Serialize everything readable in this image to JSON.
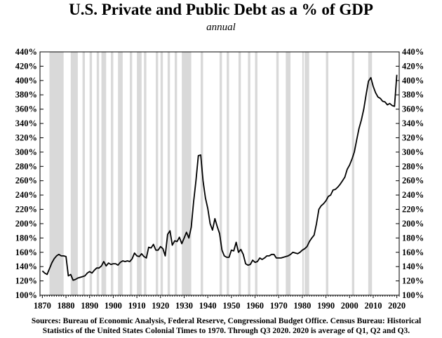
{
  "chart_data": {
    "type": "line",
    "title": "U.S. Private and Public Debt as a % of GDP",
    "subtitle": "annual",
    "xlabel": "",
    "ylabel": "",
    "xlim": [
      1869,
      2021
    ],
    "ylim": [
      100,
      440
    ],
    "x_ticks": [
      1870,
      1880,
      1890,
      1900,
      1910,
      1920,
      1930,
      1940,
      1950,
      1960,
      1970,
      1980,
      1990,
      2000,
      2010,
      2020
    ],
    "y_ticks": [
      100,
      120,
      140,
      160,
      180,
      200,
      220,
      240,
      260,
      280,
      300,
      320,
      340,
      360,
      380,
      400,
      420,
      440
    ],
    "y_tick_suffix": "%",
    "grid": false,
    "recession_shading_color": "#d9d9d9",
    "line_color": "#000000",
    "recessions": [
      [
        1873,
        1879
      ],
      [
        1882,
        1885
      ],
      [
        1887,
        1888
      ],
      [
        1890,
        1891
      ],
      [
        1893,
        1894
      ],
      [
        1895,
        1897
      ],
      [
        1899,
        1900
      ],
      [
        1902,
        1904
      ],
      [
        1907,
        1908
      ],
      [
        1910,
        1912
      ],
      [
        1913,
        1914
      ],
      [
        1918,
        1919
      ],
      [
        1920,
        1921
      ],
      [
        1923,
        1924
      ],
      [
        1926,
        1927
      ],
      [
        1929,
        1933
      ],
      [
        1937,
        1938
      ],
      [
        1945,
        1946
      ],
      [
        1948,
        1949
      ],
      [
        1953,
        1954
      ],
      [
        1957,
        1958
      ],
      [
        1960,
        1961
      ],
      [
        1969,
        1970
      ],
      [
        1973,
        1975
      ],
      [
        1980,
        1980.6
      ],
      [
        1981,
        1982.9
      ],
      [
        1990,
        1991
      ],
      [
        2001,
        2002
      ],
      [
        2007.9,
        2009.5
      ]
    ],
    "x": [
      1870,
      1871,
      1872,
      1873,
      1874,
      1875,
      1876,
      1877,
      1878,
      1879,
      1880,
      1881,
      1882,
      1883,
      1884,
      1885,
      1886,
      1887,
      1888,
      1889,
      1890,
      1891,
      1892,
      1893,
      1894,
      1895,
      1896,
      1897,
      1898,
      1899,
      1900,
      1901,
      1902,
      1903,
      1904,
      1905,
      1906,
      1907,
      1908,
      1909,
      1910,
      1911,
      1912,
      1913,
      1914,
      1915,
      1916,
      1917,
      1918,
      1919,
      1920,
      1921,
      1922,
      1923,
      1924,
      1925,
      1926,
      1927,
      1928,
      1929,
      1930,
      1931,
      1932,
      1933,
      1934,
      1935,
      1936,
      1937,
      1938,
      1939,
      1940,
      1941,
      1942,
      1943,
      1944,
      1945,
      1946,
      1947,
      1948,
      1949,
      1950,
      1951,
      1952,
      1953,
      1954,
      1955,
      1956,
      1957,
      1958,
      1959,
      1960,
      1961,
      1962,
      1963,
      1964,
      1965,
      1966,
      1967,
      1968,
      1969,
      1970,
      1971,
      1972,
      1973,
      1974,
      1975,
      1976,
      1977,
      1978,
      1979,
      1980,
      1981,
      1982,
      1983,
      1984,
      1985,
      1986,
      1987,
      1988,
      1989,
      1990,
      1991,
      1992,
      1993,
      1994,
      1995,
      1996,
      1997,
      1998,
      1999,
      2000,
      2001,
      2002,
      2003,
      2004,
      2005,
      2006,
      2007,
      2008,
      2009,
      2010,
      2011,
      2012,
      2013,
      2014,
      2015,
      2016,
      2017,
      2018,
      2019,
      2020
    ],
    "series": [
      {
        "values": [
          134,
          131,
          129,
          137,
          145,
          151,
          155,
          157,
          155,
          155,
          154,
          127,
          129,
          121,
          122,
          124,
          125,
          126,
          127,
          131,
          133,
          131,
          135,
          138,
          138,
          141,
          147,
          141,
          145,
          143,
          144,
          144,
          142,
          146,
          148,
          147,
          148,
          147,
          151,
          159,
          155,
          154,
          158,
          154,
          152,
          167,
          166,
          171,
          163,
          163,
          168,
          165,
          155,
          185,
          190,
          170,
          176,
          175,
          181,
          172,
          180,
          188,
          180,
          195,
          230,
          260,
          295,
          296,
          260,
          236,
          221,
          200,
          191,
          207,
          196,
          186,
          163,
          155,
          153,
          153,
          163,
          162,
          174,
          160,
          164,
          157,
          144,
          142,
          143,
          149,
          146,
          147,
          152,
          150,
          152,
          155,
          155,
          157,
          157,
          152,
          152,
          152,
          153,
          154,
          155,
          157,
          160,
          159,
          158,
          160,
          163,
          165,
          168,
          175,
          180,
          184,
          200,
          220,
          225,
          228,
          232,
          238,
          240,
          247,
          248,
          251,
          255,
          260,
          265,
          276,
          282,
          290,
          300,
          317,
          333,
          345,
          360,
          380,
          399,
          404,
          392,
          383,
          377,
          375,
          371,
          370,
          366,
          368,
          365,
          364,
          408
        ]
      }
    ]
  },
  "sources": [
    "Sources: Bureau of Economic Analysis, Federal Reserve, Congressional Budget Office. Census Bureau: Historical",
    "Statistics of the United States Colonial Times to 1970.  Through Q3 2020. 2020 is average of Q1, Q2 and Q3."
  ]
}
